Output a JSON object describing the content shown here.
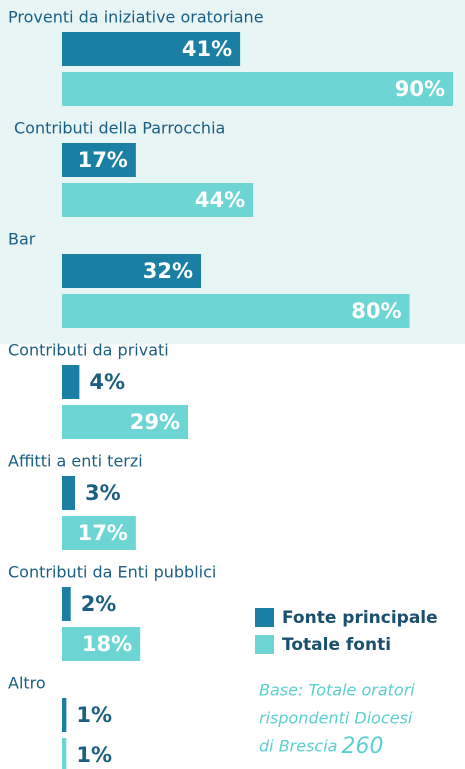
{
  "chart_data": {
    "type": "bar",
    "orientation": "horizontal",
    "categories": [
      "Proventi da iniziative oratoriane",
      "Contributi della Parrocchia",
      "Bar",
      "Contributi da privati",
      "Affitti a enti terzi",
      "Contributi da Enti pubblici",
      "Altro"
    ],
    "series": [
      {
        "name": "Fonte principale",
        "color": "#1b7fa3",
        "values": [
          41,
          17,
          32,
          4,
          3,
          2,
          1
        ],
        "value_labels": [
          "41%",
          "17%",
          "32%",
          "4%",
          "3%",
          "2%",
          "1%"
        ]
      },
      {
        "name": "Totale fonti",
        "color": "#6dd6d4",
        "values": [
          90,
          44,
          80,
          29,
          17,
          18,
          1
        ],
        "value_labels": [
          "90%",
          "44%",
          "80%",
          "29%",
          "17%",
          "18%",
          "1%"
        ]
      }
    ],
    "xlim": [
      0,
      90
    ],
    "note_lines": [
      "Base: Totale oratori",
      "rispondenti Diocesi",
      "di Brescia"
    ],
    "note_value": 260
  }
}
